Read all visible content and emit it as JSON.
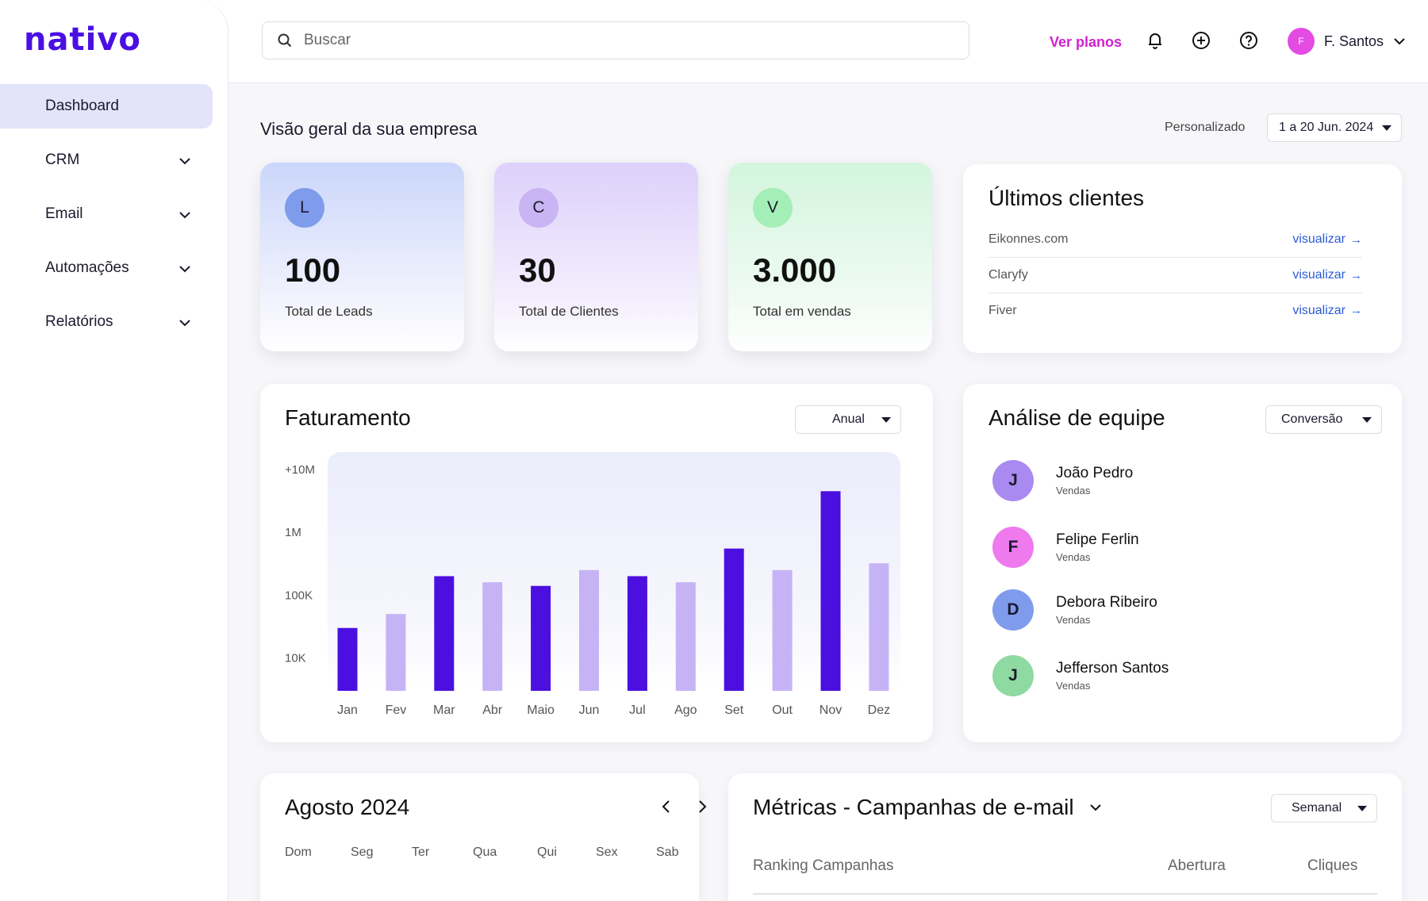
{
  "brand": {
    "name": "nativo"
  },
  "sidebar": {
    "items": [
      {
        "label": "Dashboard",
        "active": true
      },
      {
        "label": "CRM"
      },
      {
        "label": "Email"
      },
      {
        "label": "Automações"
      },
      {
        "label": "Relatórios"
      }
    ]
  },
  "topbar": {
    "search_placeholder": "Buscar",
    "ver_planos": "Ver planos",
    "icons": [
      "bell-icon",
      "plus-circle-icon",
      "help-circle-icon"
    ],
    "user": {
      "initial": "F",
      "name": "F. Santos"
    }
  },
  "overview": {
    "title": "Visão geral da sua empresa",
    "period_label": "Personalizado",
    "period_value": "1 a 20 Jun. 2024"
  },
  "kpis": [
    {
      "badge": "L",
      "value": "100",
      "label": "Total de Leads",
      "badge_color": "#7f9bec"
    },
    {
      "badge": "C",
      "value": "30",
      "label": "Total de Clientes",
      "badge_color": "#c9b4f4"
    },
    {
      "badge": "V",
      "value": "3.000",
      "label": "Total em vendas",
      "badge_color": "#a4efb7"
    }
  ],
  "ultimos_clientes": {
    "title": "Últimos clientes",
    "link_label": "visualizar",
    "rows": [
      {
        "name": "Eikonnes.com"
      },
      {
        "name": "Claryfy"
      },
      {
        "name": "Fiver"
      }
    ]
  },
  "faturamento": {
    "title": "Faturamento",
    "select": "Anual"
  },
  "chart_data": {
    "type": "bar",
    "scale": "log",
    "y_ticks": [
      "+10M",
      "1M",
      "100K",
      "10K"
    ],
    "y_tick_values": [
      10000000,
      1000000,
      100000,
      10000
    ],
    "ylim": [
      3000,
      30000000
    ],
    "categories": [
      "Jan",
      "Fev",
      "Mar",
      "Abr",
      "Maio",
      "Jun",
      "Jul",
      "Ago",
      "Set",
      "Out",
      "Nov",
      "Dez"
    ],
    "values": [
      30000,
      50000,
      200000,
      160000,
      140000,
      250000,
      200000,
      160000,
      550000,
      250000,
      4500000,
      320000
    ],
    "colors": [
      "#4b0fe0",
      "#c6b3f5",
      "#4b0fe0",
      "#c6b3f5",
      "#4b0fe0",
      "#c6b3f5",
      "#4b0fe0",
      "#c6b3f5",
      "#4b0fe0",
      "#c6b3f5",
      "#4b0fe0",
      "#c6b3f5"
    ],
    "grid": false
  },
  "equipe": {
    "title": "Análise de equipe",
    "select": "Conversão",
    "members": [
      {
        "initial": "J",
        "name": "João Pedro",
        "role": "Vendas",
        "color": "#a98af0"
      },
      {
        "initial": "F",
        "name": "Felipe Ferlin",
        "role": "Vendas",
        "color": "#ee7aee"
      },
      {
        "initial": "D",
        "name": "Debora Ribeiro",
        "role": "Vendas",
        "color": "#7f9bec"
      },
      {
        "initial": "J",
        "name": "Jefferson Santos",
        "role": "Vendas",
        "color": "#8fd9a3"
      }
    ]
  },
  "calendar": {
    "title": "Agosto 2024",
    "weekdays": [
      "Dom",
      "Seg",
      "Ter",
      "Qua",
      "Qui",
      "Sex",
      "Sab"
    ]
  },
  "metricas": {
    "title": "Métricas - Campanhas de e-mail",
    "select": "Semanal",
    "columns": [
      "Ranking Campanhas",
      "Abertura",
      "Cliques"
    ]
  }
}
